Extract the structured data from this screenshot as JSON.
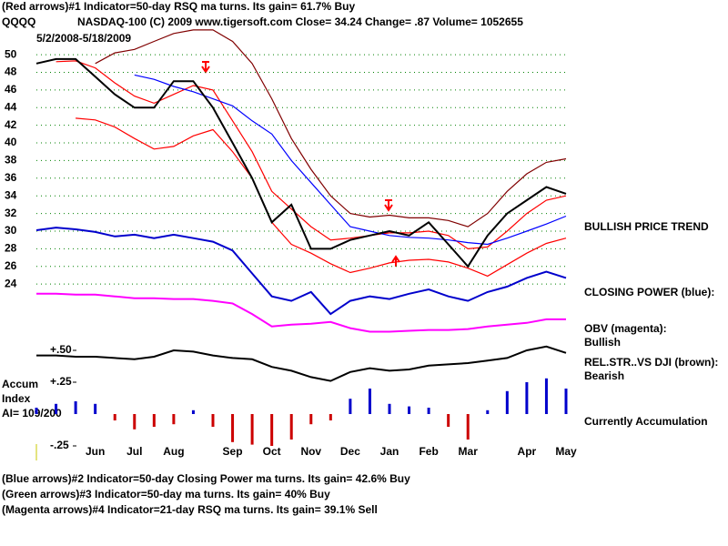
{
  "chart_data": {
    "type": "line",
    "title": "(Red arrows)#1 Indicator=50-day RSQ ma turns. Its gain= 61.7% Buy",
    "symbol": "QQQQ",
    "subtitle": "NASDAQ-100  (C) 2009 www.tigersoft.com     Close=  34.24  Change=  .87 Volume= 1052655",
    "date_range": "5/2/2008-5/18/2009",
    "accum_label": [
      "Accum",
      "Index",
      "AI= 109/200"
    ],
    "annotations": [
      "BULLISH PRICE TREND",
      "CLOSING POWER (blue):",
      "OBV (magenta):",
      "Bullish",
      "REL.STR..VS DJI (brown):",
      "Bearish",
      "Currently Accumulation"
    ],
    "footer": [
      "(Blue arrows)#2 Indicator=50-day Closing Power ma turns. Its gain= 42.6% Buy",
      "(Green arrows)#3 Indicator=50-day ma turns. Its gain= 40% Buy",
      "(Magenta arrows)#4 Indicator=21-day RSQ ma turns. Its gain= 39.1% Sell"
    ],
    "categories": [
      null,
      null,
      null,
      "Jun",
      null,
      "Jul",
      null,
      "Aug",
      null,
      null,
      "Sep",
      null,
      "Oct",
      null,
      "Nov",
      null,
      "Dec",
      null,
      "Jan",
      null,
      "Feb",
      null,
      "Mar",
      null,
      null,
      "Apr",
      null,
      "May"
    ],
    "ylim": [
      17,
      53
    ],
    "yticks": [
      24,
      26,
      28,
      30,
      32,
      34,
      36,
      38,
      40,
      42,
      44,
      46,
      48,
      50
    ],
    "y2lim": [
      -0.3,
      0.6
    ],
    "y2ticks": [
      {
        "value": 0.5,
        "label": "+.50"
      },
      {
        "value": 0.25,
        "label": "+.25"
      },
      {
        "value": -0.25,
        "label": "-.25"
      }
    ],
    "grid": true,
    "grid_color": "#008000",
    "series": [
      {
        "color": "#800000",
        "values": [
          null,
          null,
          null,
          49,
          50.2,
          50.6,
          51.5,
          52.4,
          52.8,
          52.8,
          51.5,
          49,
          45,
          40.5,
          37,
          34,
          32,
          31.6,
          31.8,
          31.5,
          31.5,
          31.2,
          30.5,
          32,
          34.5,
          36.5,
          37.8,
          38.2
        ]
      },
      {
        "color": "#ff0000",
        "values": [
          null,
          null,
          42.8,
          42.6,
          41.8,
          40.5,
          39.3,
          39.6,
          40.8,
          41.5,
          39,
          36,
          31,
          28.5,
          27.5,
          26.3,
          25.3,
          25.8,
          26.4,
          26.7,
          26.8,
          26.5,
          25.8,
          24.9,
          26.2,
          27.5,
          28.6,
          29.2
        ]
      },
      {
        "color": "#ff0000",
        "values": [
          null,
          49.2,
          49.3,
          48.5,
          46.8,
          45.3,
          44.5,
          45.5,
          46.5,
          46,
          42.5,
          39,
          34.5,
          32.5,
          30.5,
          29,
          29.2,
          29.5,
          29.8,
          29.8,
          30,
          29.5,
          28,
          28.2,
          30,
          32,
          33.5,
          34
        ]
      },
      {
        "color": "#0000ff",
        "values": [
          null,
          null,
          null,
          null,
          null,
          47.7,
          47.2,
          46.4,
          45.8,
          45,
          44.2,
          42.5,
          41,
          38,
          35.5,
          33,
          30.5,
          30,
          29.5,
          29.3,
          29.2,
          29,
          28.7,
          28.5,
          29.2,
          30,
          30.8,
          31.7
        ]
      },
      {
        "color": "#000000",
        "values": [
          49,
          49.5,
          49.5,
          47.5,
          45.5,
          44,
          44,
          47,
          47,
          44,
          40,
          36,
          31,
          33,
          28,
          28,
          29,
          29.5,
          30,
          29.5,
          31,
          28.5,
          26,
          29.5,
          32,
          33.5,
          35,
          34.24
        ]
      },
      {
        "color": "#0000cc",
        "values": [
          30.1,
          30.4,
          30.2,
          29.9,
          29.4,
          29.6,
          29.2,
          29.6,
          29.2,
          28.8,
          27.8,
          25.2,
          22.6,
          22.1,
          23.1,
          20.6,
          22.1,
          22.6,
          22.3,
          22.9,
          23.4,
          22.6,
          22.1,
          23.1,
          23.7,
          24.7,
          25.4,
          24.7
        ]
      },
      {
        "color": "#ff00ff",
        "values": [
          22.9,
          22.9,
          22.8,
          22.8,
          22.6,
          22.4,
          22.4,
          22.3,
          22.3,
          22.1,
          21.8,
          20.6,
          19.2,
          19.4,
          19.5,
          19.7,
          19.0,
          18.6,
          18.6,
          18.7,
          18.8,
          18.8,
          18.9,
          19.2,
          19.4,
          19.6,
          20,
          20
        ]
      },
      {
        "color": "#000000",
        "axis": "y2",
        "values": [
          0.46,
          0.46,
          0.45,
          0.45,
          0.44,
          0.43,
          0.45,
          0.5,
          0.49,
          0.46,
          0.44,
          0.43,
          0.37,
          0.34,
          0.29,
          0.26,
          0.33,
          0.36,
          0.34,
          0.35,
          0.38,
          0.39,
          0.4,
          0.42,
          0.44,
          0.5,
          0.53,
          0.48
        ]
      },
      {
        "type": "bar",
        "axis": "y2",
        "color": "#0000cc",
        "neg_color": "#cc0000",
        "values": [
          0.05,
          0.08,
          0.1,
          0.08,
          -0.05,
          -0.12,
          -0.1,
          -0.08,
          0.03,
          -0.1,
          -0.22,
          -0.24,
          -0.25,
          -0.2,
          -0.08,
          -0.05,
          0.12,
          0.2,
          0.08,
          0.06,
          0.05,
          -0.1,
          -0.2,
          0.03,
          0.18,
          0.25,
          0.28,
          0.2
        ]
      }
    ]
  }
}
